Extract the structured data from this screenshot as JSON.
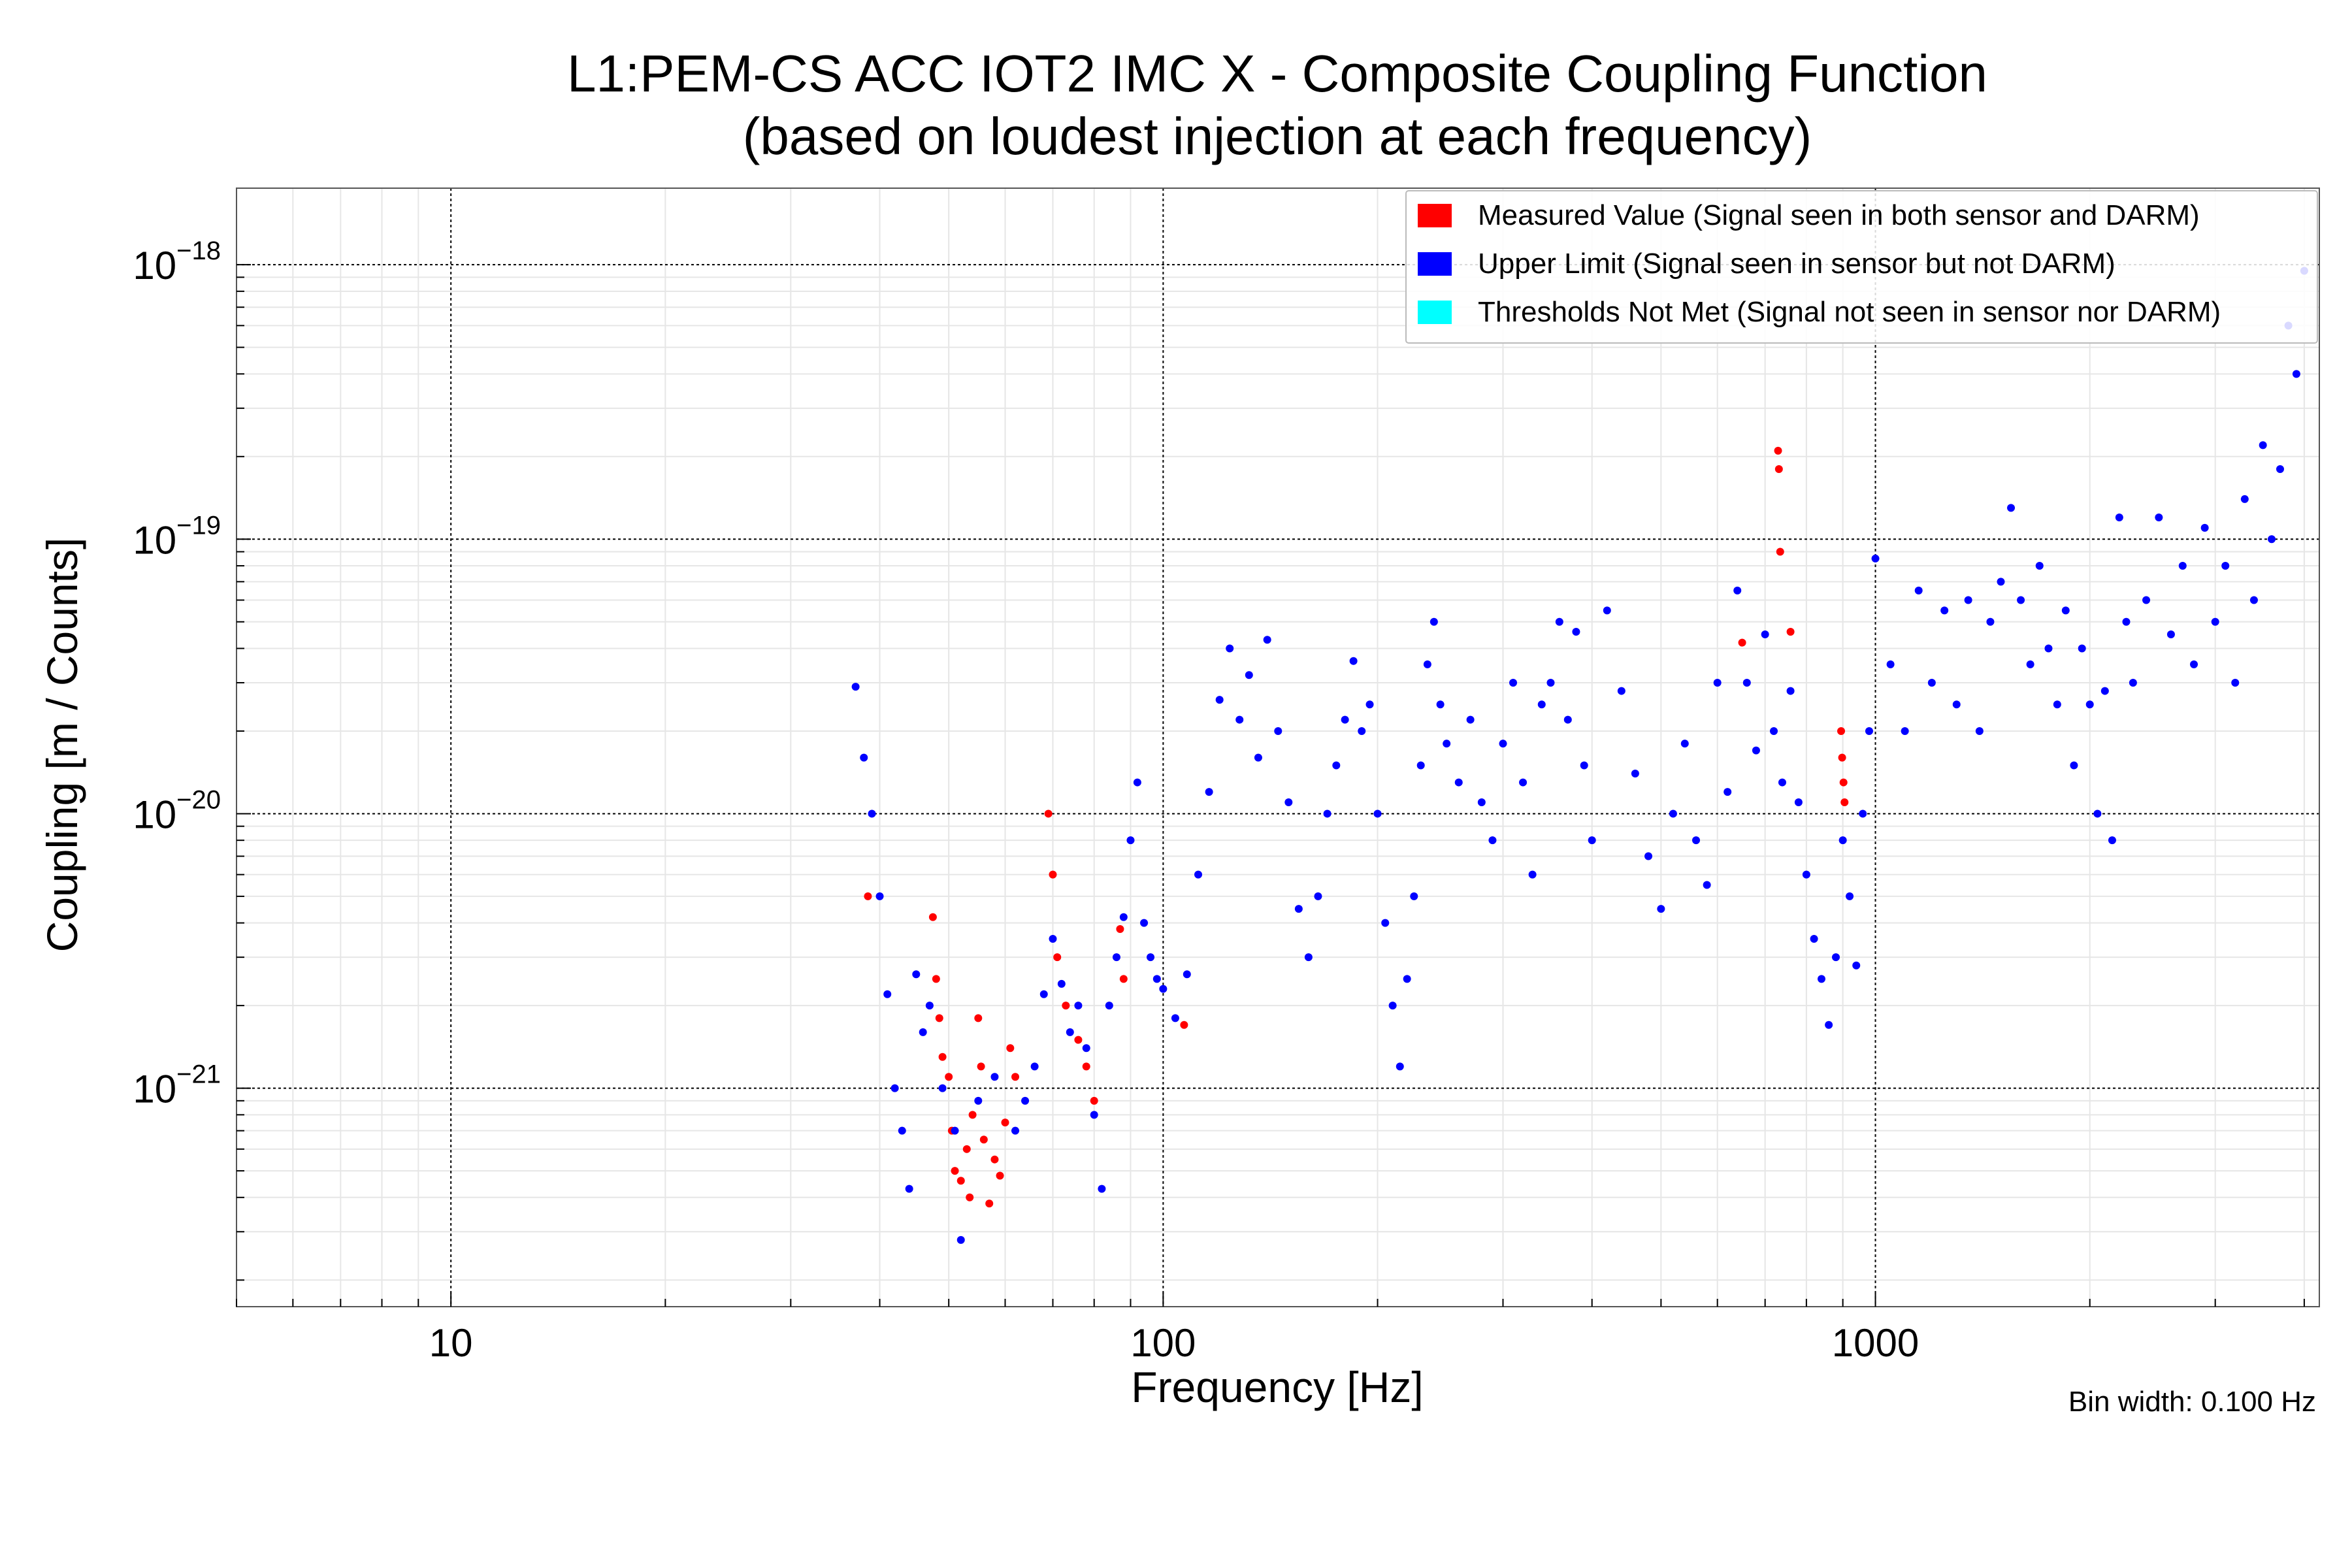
{
  "chart_data": {
    "type": "scatter",
    "title": "L1:PEM-CS ACC IOT2 IMC X - Composite Coupling Function",
    "subtitle": "(based on loudest injection at each frequency)",
    "xlabel": "Frequency [Hz]",
    "ylabel": "Coupling [m / Counts]",
    "xscale": "log",
    "yscale": "log",
    "xlim": [
      5,
      4200
    ],
    "ylim": [
      1.6e-22,
      1.9e-18
    ],
    "x_ticks": [
      {
        "value": 10,
        "label": "10"
      },
      {
        "value": 100,
        "label": "100"
      },
      {
        "value": 1000,
        "label": "1000"
      }
    ],
    "y_ticks": [
      {
        "value": 1e-21,
        "base": "10",
        "exp": "−21"
      },
      {
        "value": 1e-20,
        "base": "10",
        "exp": "−20"
      },
      {
        "value": 1e-19,
        "base": "10",
        "exp": "−19"
      },
      {
        "value": 1e-18,
        "base": "10",
        "exp": "−18"
      }
    ],
    "note": "Bin width: 0.100 Hz",
    "legend_position": "top-right",
    "series": [
      {
        "name": "Measured Value (Signal seen in both sensor and DARM)",
        "color": "#ff0000",
        "points": [
          [
            38.5,
            5e-21
          ],
          [
            47.5,
            4.2e-21
          ],
          [
            48.0,
            2.5e-21
          ],
          [
            48.5,
            1.8e-21
          ],
          [
            49.0,
            1.3e-21
          ],
          [
            50.0,
            1.1e-21
          ],
          [
            50.5,
            7e-22
          ],
          [
            51.0,
            5e-22
          ],
          [
            52.0,
            4.6e-22
          ],
          [
            53.0,
            6e-22
          ],
          [
            53.5,
            4e-22
          ],
          [
            54.0,
            8e-22
          ],
          [
            55.0,
            1.8e-21
          ],
          [
            55.5,
            1.2e-21
          ],
          [
            56.0,
            6.5e-22
          ],
          [
            57.0,
            3.8e-22
          ],
          [
            58.0,
            5.5e-22
          ],
          [
            59.0,
            4.8e-22
          ],
          [
            60.0,
            7.5e-22
          ],
          [
            61.0,
            1.4e-21
          ],
          [
            62.0,
            1.1e-21
          ],
          [
            69.0,
            1e-20
          ],
          [
            70.0,
            6e-21
          ],
          [
            71.0,
            3e-21
          ],
          [
            73.0,
            2e-21
          ],
          [
            76.0,
            1.5e-21
          ],
          [
            78.0,
            1.2e-21
          ],
          [
            80.0,
            9e-22
          ],
          [
            87.0,
            3.8e-21
          ],
          [
            88.0,
            2.5e-21
          ],
          [
            107.0,
            1.7e-21
          ],
          [
            650.0,
            4.2e-20
          ],
          [
            730.0,
            2.1e-19
          ],
          [
            732.0,
            1.8e-19
          ],
          [
            735.0,
            9e-20
          ],
          [
            760.0,
            4.6e-20
          ],
          [
            895.0,
            2e-20
          ],
          [
            898.0,
            1.6e-20
          ],
          [
            902.0,
            1.3e-20
          ],
          [
            905.0,
            1.1e-20
          ]
        ]
      },
      {
        "name": "Upper Limit (Signal seen in sensor but not DARM)",
        "color": "#0000ff",
        "points": [
          [
            37,
            2.9e-20
          ],
          [
            38,
            1.6e-20
          ],
          [
            39,
            1e-20
          ],
          [
            40,
            5e-21
          ],
          [
            41,
            2.2e-21
          ],
          [
            42,
            1e-21
          ],
          [
            43,
            7e-22
          ],
          [
            44,
            4.3e-22
          ],
          [
            45,
            2.6e-21
          ],
          [
            46,
            1.6e-21
          ],
          [
            47,
            2e-21
          ],
          [
            49,
            1e-21
          ],
          [
            51,
            7e-22
          ],
          [
            52,
            2.8e-22
          ],
          [
            55,
            9e-22
          ],
          [
            58,
            1.1e-21
          ],
          [
            62,
            7e-22
          ],
          [
            64,
            9e-22
          ],
          [
            66,
            1.2e-21
          ],
          [
            68,
            2.2e-21
          ],
          [
            70,
            3.5e-21
          ],
          [
            72,
            2.4e-21
          ],
          [
            74,
            1.6e-21
          ],
          [
            76,
            2e-21
          ],
          [
            78,
            1.4e-21
          ],
          [
            80,
            8e-22
          ],
          [
            82,
            4.3e-22
          ],
          [
            84,
            2e-21
          ],
          [
            86,
            3e-21
          ],
          [
            88,
            4.2e-21
          ],
          [
            90,
            8e-21
          ],
          [
            92,
            1.3e-20
          ],
          [
            94,
            4e-21
          ],
          [
            96,
            3e-21
          ],
          [
            98,
            2.5e-21
          ],
          [
            100,
            2.3e-21
          ],
          [
            104,
            1.8e-21
          ],
          [
            108,
            2.6e-21
          ],
          [
            112,
            6e-21
          ],
          [
            116,
            1.2e-20
          ],
          [
            120,
            2.6e-20
          ],
          [
            124,
            4e-20
          ],
          [
            128,
            2.2e-20
          ],
          [
            132,
            3.2e-20
          ],
          [
            136,
            1.6e-20
          ],
          [
            140,
            4.3e-20
          ],
          [
            145,
            2e-20
          ],
          [
            150,
            1.1e-20
          ],
          [
            155,
            4.5e-21
          ],
          [
            160,
            3e-21
          ],
          [
            165,
            5e-21
          ],
          [
            170,
            1e-20
          ],
          [
            175,
            1.5e-20
          ],
          [
            180,
            2.2e-20
          ],
          [
            185,
            3.6e-20
          ],
          [
            190,
            2e-20
          ],
          [
            195,
            2.5e-20
          ],
          [
            200,
            1e-20
          ],
          [
            205,
            4e-21
          ],
          [
            210,
            2e-21
          ],
          [
            215,
            1.2e-21
          ],
          [
            220,
            2.5e-21
          ],
          [
            225,
            5e-21
          ],
          [
            230,
            1.5e-20
          ],
          [
            235,
            3.5e-20
          ],
          [
            240,
            5e-20
          ],
          [
            245,
            2.5e-20
          ],
          [
            250,
            1.8e-20
          ],
          [
            260,
            1.3e-20
          ],
          [
            270,
            2.2e-20
          ],
          [
            280,
            1.1e-20
          ],
          [
            290,
            8e-21
          ],
          [
            300,
            1.8e-20
          ],
          [
            310,
            3e-20
          ],
          [
            320,
            1.3e-20
          ],
          [
            330,
            6e-21
          ],
          [
            340,
            2.5e-20
          ],
          [
            350,
            3e-20
          ],
          [
            360,
            5e-20
          ],
          [
            370,
            2.2e-20
          ],
          [
            380,
            4.6e-20
          ],
          [
            390,
            1.5e-20
          ],
          [
            400,
            8e-21
          ],
          [
            420,
            5.5e-20
          ],
          [
            440,
            2.8e-20
          ],
          [
            460,
            1.4e-20
          ],
          [
            480,
            7e-21
          ],
          [
            500,
            4.5e-21
          ],
          [
            520,
            1e-20
          ],
          [
            540,
            1.8e-20
          ],
          [
            560,
            8e-21
          ],
          [
            580,
            5.5e-21
          ],
          [
            600,
            3e-20
          ],
          [
            620,
            1.2e-20
          ],
          [
            640,
            6.5e-20
          ],
          [
            660,
            3e-20
          ],
          [
            680,
            1.7e-20
          ],
          [
            700,
            4.5e-20
          ],
          [
            720,
            2e-20
          ],
          [
            740,
            1.3e-20
          ],
          [
            760,
            2.8e-20
          ],
          [
            780,
            1.1e-20
          ],
          [
            800,
            6e-21
          ],
          [
            820,
            3.5e-21
          ],
          [
            840,
            2.5e-21
          ],
          [
            860,
            1.7e-21
          ],
          [
            880,
            3e-21
          ],
          [
            900,
            8e-21
          ],
          [
            920,
            5e-21
          ],
          [
            940,
            2.8e-21
          ],
          [
            960,
            1e-20
          ],
          [
            980,
            2e-20
          ],
          [
            1000,
            8.5e-20
          ],
          [
            1050,
            3.5e-20
          ],
          [
            1100,
            2e-20
          ],
          [
            1150,
            6.5e-20
          ],
          [
            1200,
            3e-20
          ],
          [
            1250,
            5.5e-20
          ],
          [
            1300,
            2.5e-20
          ],
          [
            1350,
            6e-20
          ],
          [
            1400,
            2e-20
          ],
          [
            1450,
            5e-20
          ],
          [
            1500,
            7e-20
          ],
          [
            1550,
            1.3e-19
          ],
          [
            1600,
            6e-20
          ],
          [
            1650,
            3.5e-20
          ],
          [
            1700,
            8e-20
          ],
          [
            1750,
            4e-20
          ],
          [
            1800,
            2.5e-20
          ],
          [
            1850,
            5.5e-20
          ],
          [
            1900,
            1.5e-20
          ],
          [
            1950,
            4e-20
          ],
          [
            2000,
            2.5e-20
          ],
          [
            2050,
            1e-20
          ],
          [
            2100,
            2.8e-20
          ],
          [
            2150,
            8e-21
          ],
          [
            2200,
            1.2e-19
          ],
          [
            2250,
            5e-20
          ],
          [
            2300,
            3e-20
          ],
          [
            2400,
            6e-20
          ],
          [
            2500,
            1.2e-19
          ],
          [
            2600,
            4.5e-20
          ],
          [
            2700,
            8e-20
          ],
          [
            2800,
            3.5e-20
          ],
          [
            2900,
            1.1e-19
          ],
          [
            3000,
            5e-20
          ],
          [
            3100,
            8e-20
          ],
          [
            3200,
            3e-20
          ],
          [
            3300,
            1.4e-19
          ],
          [
            3400,
            6e-20
          ],
          [
            3500,
            2.2e-19
          ],
          [
            3600,
            1e-19
          ],
          [
            3700,
            1.8e-19
          ],
          [
            3800,
            6e-19
          ],
          [
            3900,
            4e-19
          ],
          [
            4000,
            9.5e-19
          ]
        ]
      },
      {
        "name": "Thresholds Not Met (Signal not seen in sensor nor DARM)",
        "color": "#00ffff",
        "points": []
      }
    ]
  }
}
